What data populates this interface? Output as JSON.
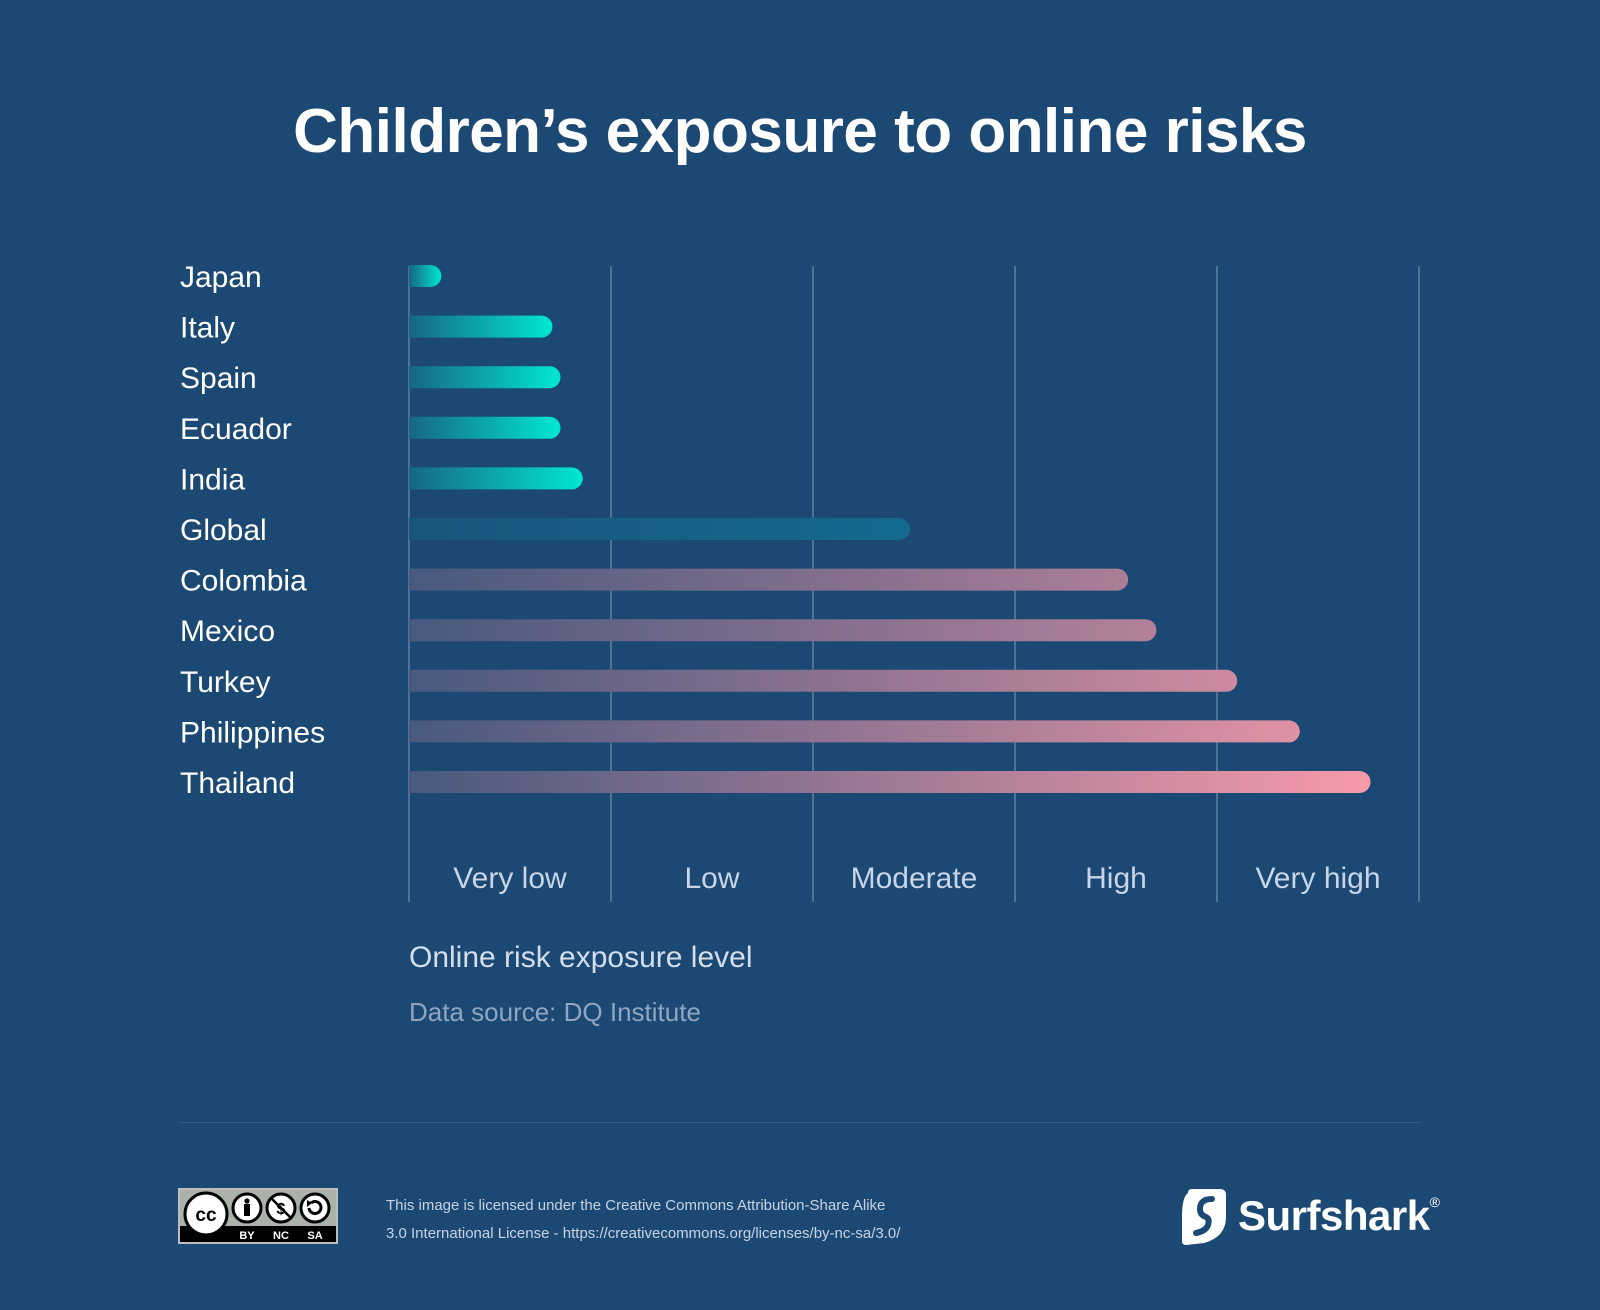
{
  "title": "Children’s exposure to online risks",
  "chart_data": {
    "type": "bar",
    "orientation": "horizontal",
    "categories": [
      "Japan",
      "Italy",
      "Spain",
      "Ecuador",
      "India",
      "Global",
      "Colombia",
      "Mexico",
      "Turkey",
      "Philippines",
      "Thailand"
    ],
    "values": [
      0.16,
      0.71,
      0.75,
      0.75,
      0.86,
      2.48,
      3.56,
      3.7,
      4.1,
      4.41,
      4.76
    ],
    "x_tick_labels": [
      "Very low",
      "Low",
      "Moderate",
      "High",
      "Very high"
    ],
    "xlim": [
      0,
      5
    ],
    "xlabel": "Online risk exposure level",
    "source": "Data source: DQ Institute",
    "grid": true,
    "colors": {
      "low_end": "#00e8d0",
      "global": "#146a8e",
      "high_end": "#f79aaa"
    }
  },
  "footer": {
    "license_line1": "This image is licensed under the Creative Commons Attribution-Share Alike",
    "license_line2": "3.0 International License - https://creativecommons.org/licenses/by-nc-sa/3.0/",
    "cc_badge": {
      "icons": [
        "cc-icon",
        "by-icon",
        "nc-icon",
        "sa-icon"
      ],
      "labels": [
        "BY",
        "NC",
        "SA"
      ]
    },
    "brand": "Surfshark",
    "brand_mark": "®"
  }
}
